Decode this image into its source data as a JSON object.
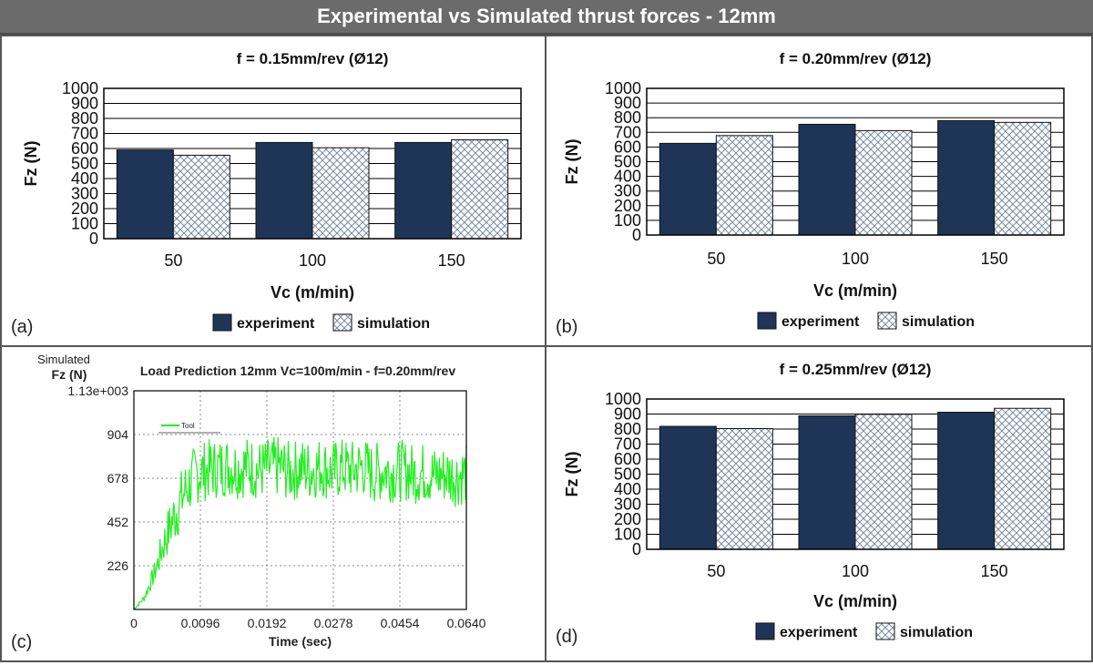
{
  "header": {
    "title": "Experimental vs Simulated thrust forces - 12mm"
  },
  "colors": {
    "experiment": "#1f3558",
    "simulation_hatch": "#7b8ca3",
    "trace": "#22ee22",
    "banner": "#6b6b6b"
  },
  "panels": {
    "a": {
      "label": "(a)"
    },
    "b": {
      "label": "(b)"
    },
    "c": {
      "label": "(c)"
    },
    "d": {
      "label": "(d)"
    }
  },
  "chart_data": [
    {
      "type": "bar",
      "title": "f = 0.15mm/rev (Ø12)",
      "xlabel": "Vc (m/min)",
      "ylabel": "Fz (N)",
      "categories": [
        "50",
        "100",
        "150"
      ],
      "ylim": [
        0,
        1000
      ],
      "yticks": [
        "0",
        "100",
        "200",
        "300",
        "400",
        "500",
        "600",
        "700",
        "800",
        "900",
        "1000"
      ],
      "series": [
        {
          "name": "experiment",
          "values": [
            590,
            640,
            640
          ]
        },
        {
          "name": "simulation",
          "values": [
            555,
            605,
            658
          ]
        }
      ],
      "grid": true,
      "legend": "bottom"
    },
    {
      "type": "bar",
      "title": "f = 0.20mm/rev (Ø12)",
      "xlabel": "Vc (m/min)",
      "ylabel": "Fz (N)",
      "categories": [
        "50",
        "100",
        "150"
      ],
      "ylim": [
        0,
        1000
      ],
      "yticks": [
        "0",
        "100",
        "200",
        "300",
        "400",
        "500",
        "600",
        "700",
        "800",
        "900",
        "1000"
      ],
      "series": [
        {
          "name": "experiment",
          "values": [
            625,
            755,
            780
          ]
        },
        {
          "name": "simulation",
          "values": [
            678,
            712,
            768
          ]
        }
      ],
      "grid": true,
      "legend": "bottom"
    },
    {
      "type": "line",
      "title": "Load Prediction 12mm  Vc=100m/min - f=0.20mm/rev",
      "ylabel_line1": "Simulated",
      "ylabel": "Fz (N)",
      "xlabel": "Time (sec)",
      "ylim": [
        0,
        1130
      ],
      "xlim": [
        0,
        0.064
      ],
      "yticks": [
        "226",
        "452",
        "678",
        "904",
        "1.13e+003"
      ],
      "xticks": [
        "0",
        "0.0096",
        "0.0192",
        "0.0278",
        "0.0454",
        "0.0640"
      ],
      "legend_entry": "Tool",
      "series": [
        {
          "name": "Tool",
          "x": [
            0,
            0.002,
            0.004,
            0.006,
            0.008,
            0.01,
            0.012,
            0.014,
            0.016,
            0.018,
            0.02,
            0.022,
            0.024,
            0.026,
            0.028,
            0.03,
            0.032,
            0.034,
            0.036,
            0.038,
            0.04,
            0.042,
            0.044,
            0.046,
            0.048,
            0.05,
            0.052,
            0.054,
            0.056,
            0.058,
            0.06,
            0.062,
            0.064
          ],
          "y": [
            0,
            60,
            190,
            360,
            500,
            620,
            700,
            720,
            730,
            740,
            730,
            740,
            720,
            730,
            740,
            710,
            730,
            720,
            740,
            710,
            730,
            720,
            740,
            700,
            720,
            710,
            720,
            700,
            710,
            690,
            700,
            690,
            700
          ]
        }
      ],
      "noise_amplitude": 160,
      "grid": true
    },
    {
      "type": "bar",
      "title": "f = 0.25mm/rev (Ø12)",
      "xlabel": "Vc (m/min)",
      "ylabel": "Fz (N)",
      "categories": [
        "50",
        "100",
        "150"
      ],
      "ylim": [
        0,
        1000
      ],
      "yticks": [
        "0",
        "100",
        "200",
        "300",
        "400",
        "500",
        "600",
        "700",
        "800",
        "900",
        "1000"
      ],
      "series": [
        {
          "name": "experiment",
          "values": [
            818,
            888,
            912
          ]
        },
        {
          "name": "simulation",
          "values": [
            803,
            898,
            938
          ]
        }
      ],
      "grid": true,
      "legend": "bottom"
    }
  ]
}
